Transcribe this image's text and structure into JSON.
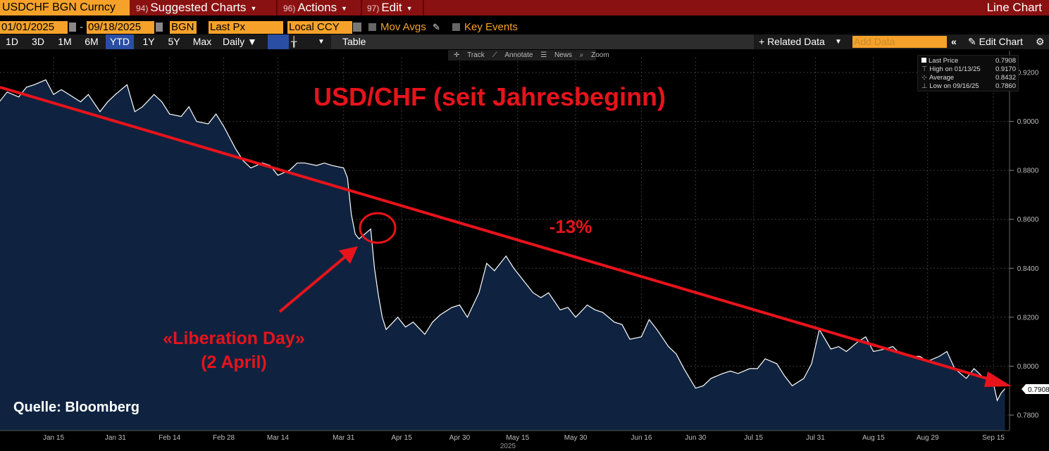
{
  "topbar": {
    "ticker": "USDCHF BGN Curncy",
    "menu1_num": "94)",
    "menu1": "Suggested Charts",
    "menu2_num": "96)",
    "menu2": "Actions",
    "menu3_num": "97)",
    "menu3": "Edit",
    "title": "Line Chart"
  },
  "row2": {
    "start_date": "01/01/2025",
    "end_date": "09/18/2025",
    "dash": "-",
    "source": "BGN",
    "field": "Last Px",
    "currency": "Local CCY",
    "mov_avgs": "Mov Avgs",
    "key_events": "Key Events"
  },
  "row3": {
    "periods": [
      "1D",
      "3D",
      "1M",
      "6M",
      "YTD",
      "1Y",
      "5Y",
      "Max"
    ],
    "active_period": "YTD",
    "frequency": "Daily ▼",
    "table": "Table",
    "related_data": "+ Related Data",
    "add_data_placeholder": "Add Data",
    "edit_chart": "Edit Chart"
  },
  "tools": {
    "track": "Track",
    "annotate": "Annotate",
    "news": "News",
    "zoom": "Zoom"
  },
  "legend": {
    "last_price_label": "Last Price",
    "last_price": "0.7908",
    "high_label": "High on 01/13/25",
    "high": "0.9170",
    "average_label": "Average",
    "average": "0.8432",
    "low_label": "Low on 09/16/25",
    "low": "0.7860"
  },
  "annotations": {
    "headline": "USD/CHF (seit Jahresbeginn)",
    "change": "-13%",
    "event_line1": "«Liberation Day»",
    "event_line2": "(2 April)",
    "source": "Quelle: Bloomberg",
    "color": "#e8131b"
  },
  "colors": {
    "area_fill": "#0f2340",
    "line": "#ffffff",
    "accent": "#f6a22a",
    "topbar": "#8a1111"
  },
  "chart_data": {
    "type": "area",
    "title": "USD/CHF (seit Jahresbeginn)",
    "xlabel": "2025",
    "ylabel": "",
    "ylim": [
      0.775,
      0.925
    ],
    "yticks": [
      "0.9200",
      "0.9000",
      "0.8800",
      "0.8600",
      "0.8400",
      "0.8200",
      "0.8000",
      "0.7800"
    ],
    "ytick_values": [
      0.92,
      0.9,
      0.88,
      0.86,
      0.84,
      0.82,
      0.8,
      0.78
    ],
    "xticks": [
      "Jan 15",
      "Jan 31",
      "Feb 14",
      "Feb 28",
      "Mar 14",
      "Mar 31",
      "Apr 15",
      "Apr 30",
      "May 15",
      "May 30",
      "Jun 16",
      "Jun 30",
      "Jul 15",
      "Jul 31",
      "Aug 15",
      "Aug 29",
      "Sep 15"
    ],
    "xtick_dates": [
      "2025-01-15",
      "2025-01-31",
      "2025-02-14",
      "2025-02-28",
      "2025-03-14",
      "2025-03-31",
      "2025-04-15",
      "2025-04-30",
      "2025-05-15",
      "2025-05-30",
      "2025-06-16",
      "2025-06-30",
      "2025-07-15",
      "2025-07-31",
      "2025-08-15",
      "2025-08-29",
      "2025-09-15"
    ],
    "x_range": [
      "2025-01-01",
      "2025-09-18"
    ],
    "last_value_label": "0.7908",
    "grid": true,
    "series": [
      {
        "x": [
          "2025-01-01",
          "2025-01-03",
          "2025-01-06",
          "2025-01-08",
          "2025-01-10",
          "2025-01-13",
          "2025-01-15",
          "2025-01-17",
          "2025-01-20",
          "2025-01-22",
          "2025-01-24",
          "2025-01-27",
          "2025-01-29",
          "2025-01-31",
          "2025-02-03",
          "2025-02-05",
          "2025-02-07",
          "2025-02-10",
          "2025-02-12",
          "2025-02-14",
          "2025-02-17",
          "2025-02-19",
          "2025-02-21",
          "2025-02-24",
          "2025-02-26",
          "2025-02-28",
          "2025-03-03",
          "2025-03-05",
          "2025-03-07",
          "2025-03-10",
          "2025-03-12",
          "2025-03-14",
          "2025-03-17",
          "2025-03-19",
          "2025-03-21",
          "2025-03-24",
          "2025-03-26",
          "2025-03-28",
          "2025-03-31",
          "2025-04-01",
          "2025-04-02",
          "2025-04-03",
          "2025-04-04",
          "2025-04-07",
          "2025-04-08",
          "2025-04-09",
          "2025-04-10",
          "2025-04-11",
          "2025-04-14",
          "2025-04-16",
          "2025-04-18",
          "2025-04-21",
          "2025-04-23",
          "2025-04-25",
          "2025-04-28",
          "2025-04-30",
          "2025-05-02",
          "2025-05-05",
          "2025-05-07",
          "2025-05-09",
          "2025-05-12",
          "2025-05-14",
          "2025-05-16",
          "2025-05-19",
          "2025-05-21",
          "2025-05-23",
          "2025-05-26",
          "2025-05-28",
          "2025-05-30",
          "2025-06-02",
          "2025-06-04",
          "2025-06-06",
          "2025-06-09",
          "2025-06-11",
          "2025-06-13",
          "2025-06-16",
          "2025-06-18",
          "2025-06-20",
          "2025-06-23",
          "2025-06-25",
          "2025-06-27",
          "2025-06-30",
          "2025-07-02",
          "2025-07-04",
          "2025-07-07",
          "2025-07-09",
          "2025-07-11",
          "2025-07-14",
          "2025-07-16",
          "2025-07-18",
          "2025-07-21",
          "2025-07-23",
          "2025-07-25",
          "2025-07-28",
          "2025-07-30",
          "2025-08-01",
          "2025-08-04",
          "2025-08-06",
          "2025-08-08",
          "2025-08-11",
          "2025-08-13",
          "2025-08-15",
          "2025-08-18",
          "2025-08-20",
          "2025-08-22",
          "2025-08-25",
          "2025-08-27",
          "2025-08-29",
          "2025-09-01",
          "2025-09-03",
          "2025-09-05",
          "2025-09-08",
          "2025-09-10",
          "2025-09-12",
          "2025-09-15",
          "2025-09-16",
          "2025-09-17",
          "2025-09-18"
        ],
        "values": [
          0.908,
          0.912,
          0.91,
          0.914,
          0.915,
          0.917,
          0.911,
          0.913,
          0.91,
          0.908,
          0.911,
          0.904,
          0.908,
          0.911,
          0.915,
          0.904,
          0.906,
          0.911,
          0.908,
          0.903,
          0.902,
          0.906,
          0.9,
          0.899,
          0.903,
          0.898,
          0.889,
          0.884,
          0.881,
          0.883,
          0.882,
          0.878,
          0.88,
          0.883,
          0.883,
          0.882,
          0.883,
          0.882,
          0.881,
          0.877,
          0.862,
          0.854,
          0.852,
          0.856,
          0.84,
          0.829,
          0.82,
          0.815,
          0.82,
          0.816,
          0.818,
          0.813,
          0.818,
          0.821,
          0.824,
          0.825,
          0.82,
          0.83,
          0.842,
          0.839,
          0.845,
          0.84,
          0.836,
          0.83,
          0.828,
          0.83,
          0.823,
          0.824,
          0.82,
          0.825,
          0.823,
          0.822,
          0.818,
          0.817,
          0.811,
          0.812,
          0.819,
          0.815,
          0.808,
          0.805,
          0.799,
          0.791,
          0.792,
          0.795,
          0.797,
          0.798,
          0.797,
          0.799,
          0.799,
          0.803,
          0.801,
          0.796,
          0.792,
          0.795,
          0.801,
          0.815,
          0.807,
          0.808,
          0.806,
          0.81,
          0.812,
          0.806,
          0.807,
          0.808,
          0.805,
          0.804,
          0.804,
          0.802,
          0.804,
          0.806,
          0.799,
          0.795,
          0.799,
          0.796,
          0.793,
          0.786,
          0.789,
          0.7908
        ]
      }
    ]
  }
}
